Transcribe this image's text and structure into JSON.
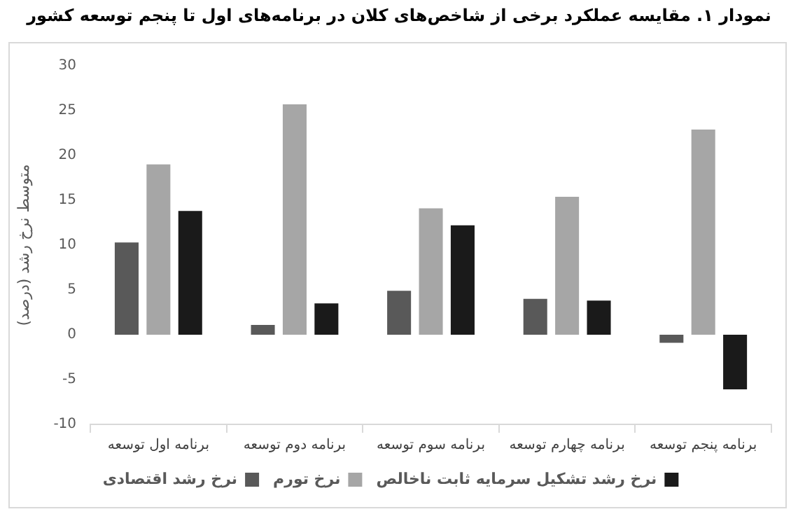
{
  "chart_data": {
    "type": "bar",
    "title": "نمودار ۱. مقایسه عملکرد برخی از شاخص‌های کلان در برنامه‌های اول تا پنجم توسعه کشور",
    "ylabel": "متوسط نرخ رشد (درصد)",
    "categories": [
      "برنامه اول توسعه",
      "برنامه دوم توسعه",
      "برنامه سوم توسعه",
      "برنامه چهارم توسعه",
      "برنامه پنجم توسعه"
    ],
    "series": [
      {
        "name": "نرخ رشد اقتصادی",
        "color": "#595959",
        "values": [
          10.3,
          1.1,
          4.9,
          4.0,
          -0.9
        ]
      },
      {
        "name": "نرخ تورم",
        "color": "#a6a6a6",
        "values": [
          19.0,
          25.7,
          14.1,
          15.4,
          22.9
        ]
      },
      {
        "name": "نرخ رشد تشکیل سرمایه ثابت ناخالص",
        "color": "#1a1a1a",
        "values": [
          13.8,
          3.5,
          12.2,
          3.8,
          -6.1
        ]
      }
    ],
    "ylim": [
      -10,
      30
    ],
    "yticks": [
      -10,
      -5,
      0,
      5,
      10,
      15,
      20,
      25,
      30
    ],
    "grid": false,
    "legend": "bottom"
  }
}
